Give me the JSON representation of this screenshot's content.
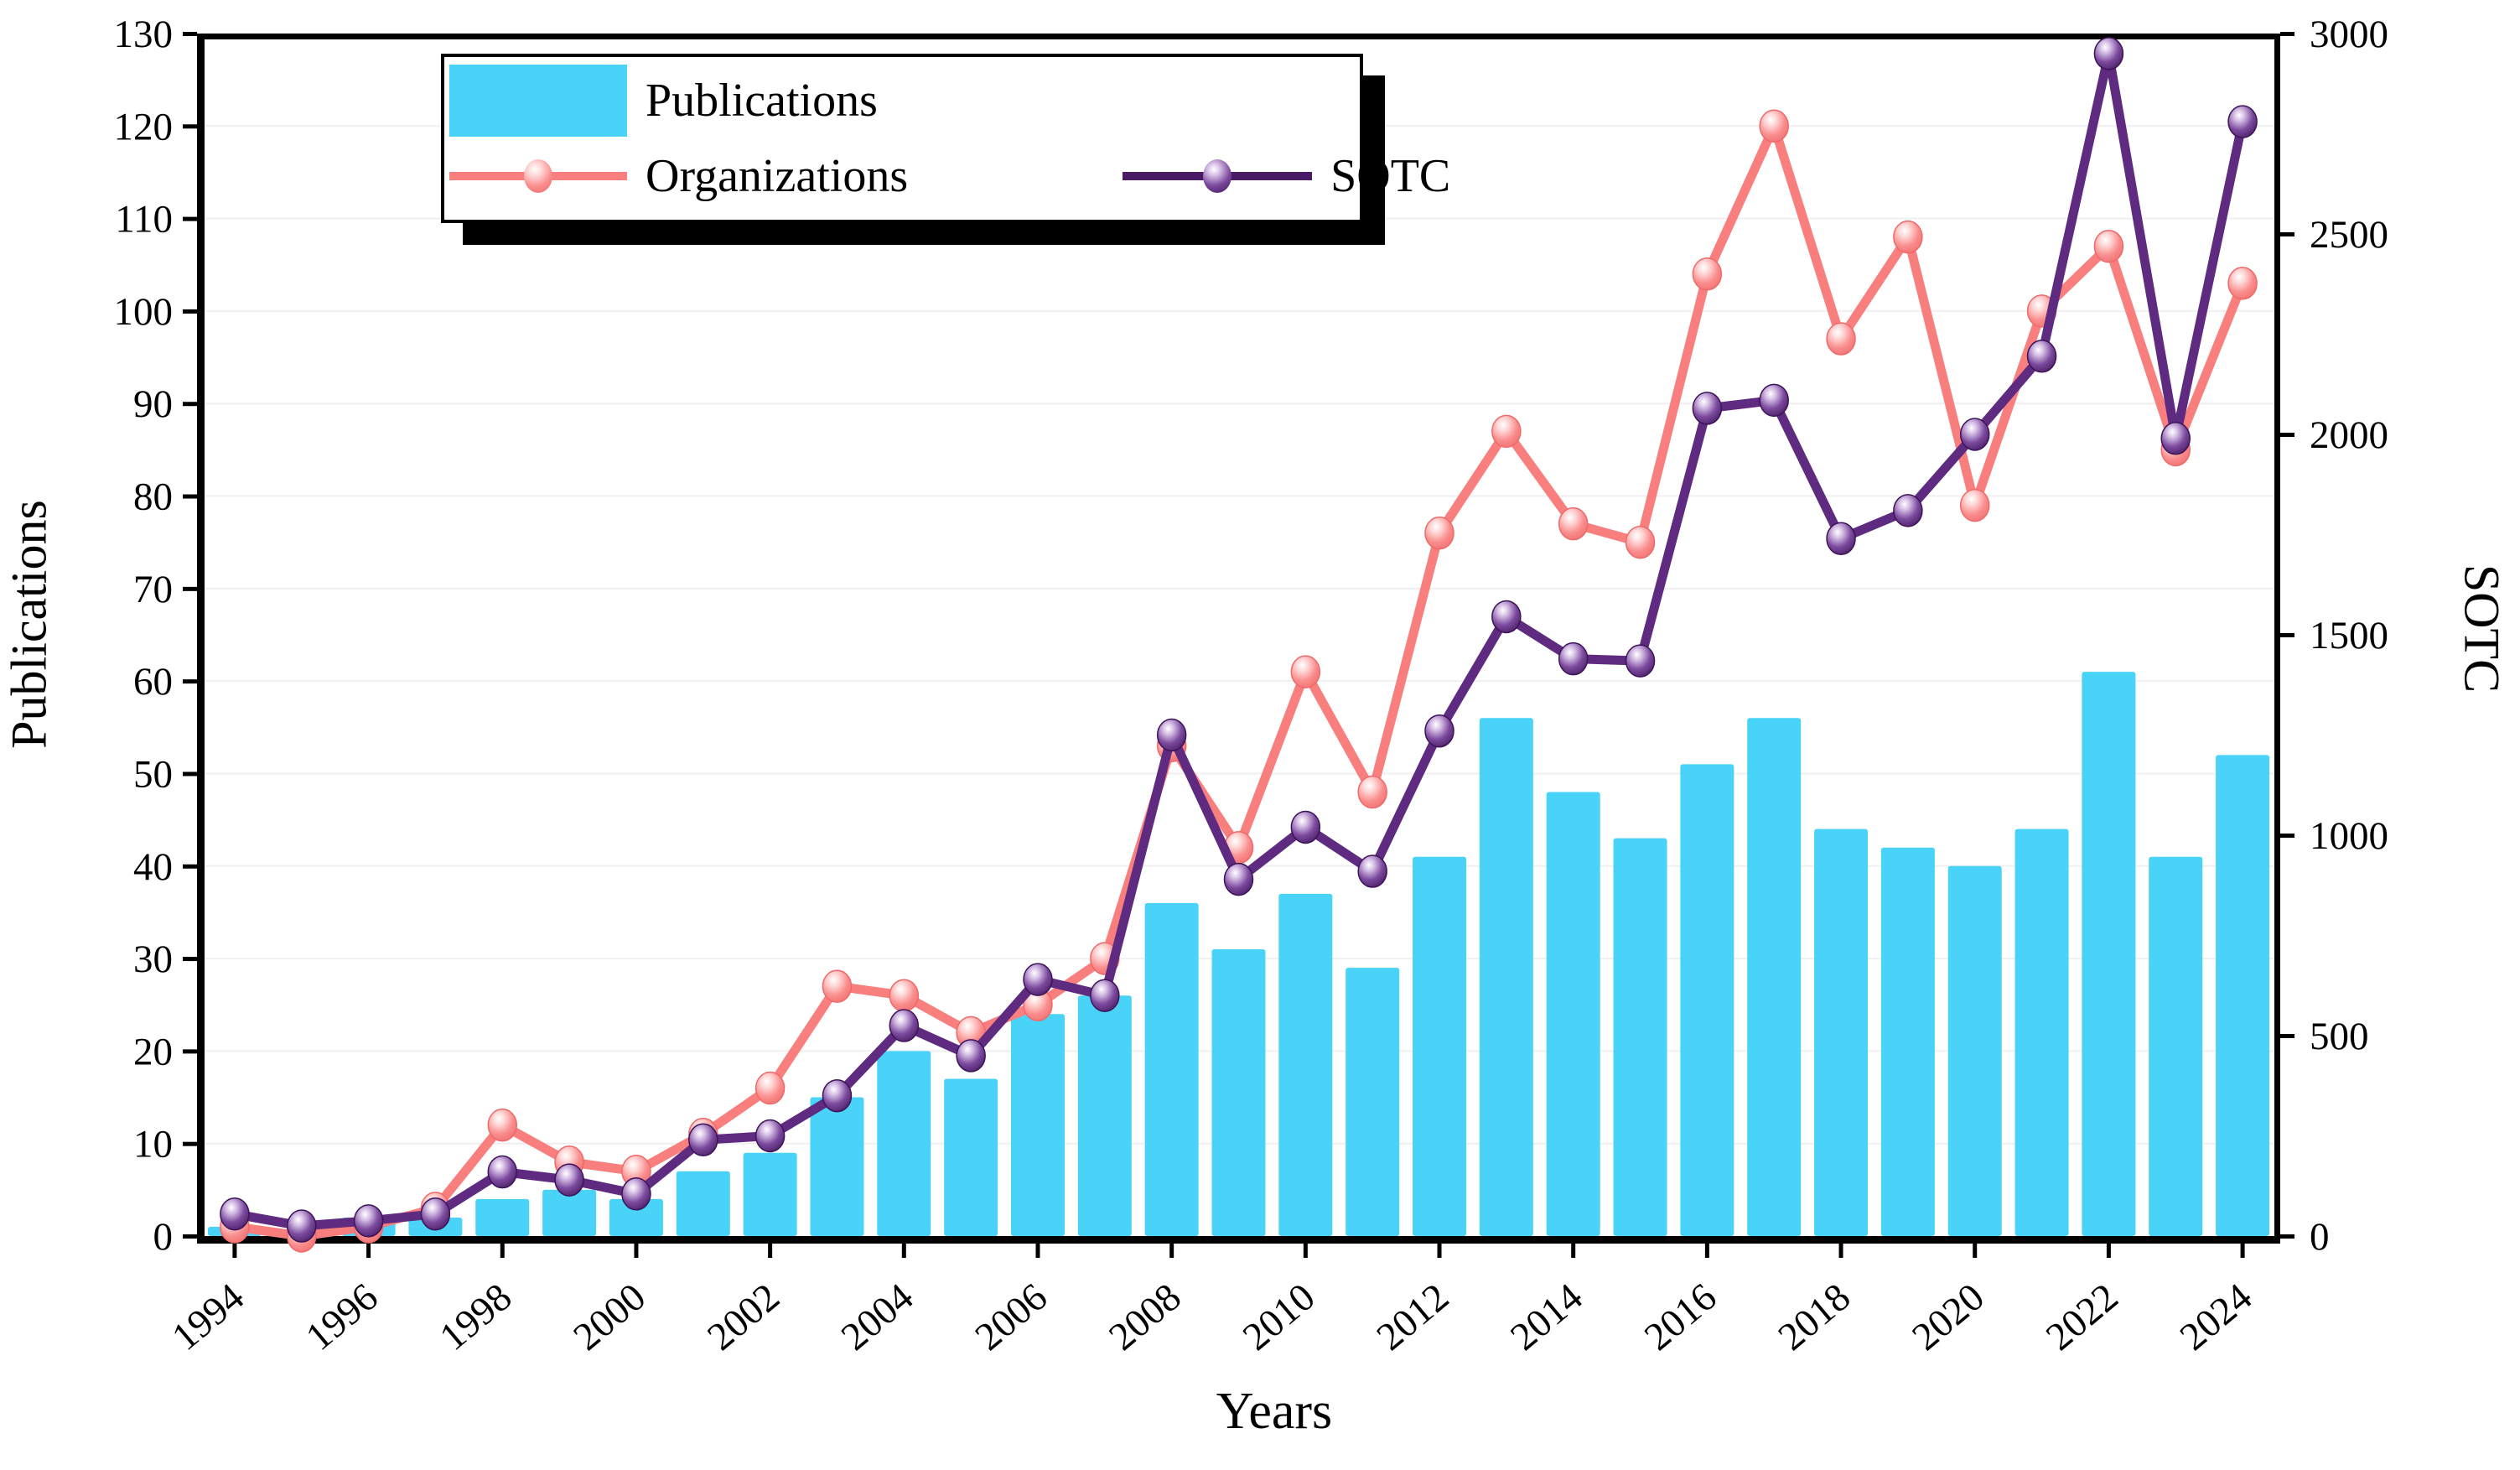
{
  "figure": {
    "x_axis_title": "Years",
    "left_axis_title": "Publications",
    "right_axis_title": "SOTC"
  },
  "legend": {
    "publications_label": "Publications",
    "organizations_label": "Organizations",
    "sotc_label": "SOTC"
  },
  "chart_data": {
    "type": "bar",
    "subtype": "combo bar + two lines (dual axis)",
    "categories": [
      1994,
      1995,
      1996,
      1997,
      1998,
      1999,
      2000,
      2001,
      2002,
      2003,
      2004,
      2005,
      2006,
      2007,
      2008,
      2009,
      2010,
      2011,
      2012,
      2013,
      2014,
      2015,
      2016,
      2017,
      2018,
      2019,
      2020,
      2021,
      2022,
      2023,
      2024
    ],
    "series": [
      {
        "name": "Publications",
        "type": "bar",
        "axis": "left",
        "color": "#49d3f8",
        "values": [
          1,
          0,
          2,
          2,
          4,
          5,
          4,
          7,
          9,
          15,
          20,
          17,
          24,
          26,
          36,
          31,
          37,
          29,
          41,
          56,
          48,
          43,
          51,
          56,
          44,
          42,
          40,
          44,
          61,
          41,
          52
        ]
      },
      {
        "name": "Organizations",
        "type": "line",
        "axis": "left",
        "color": "#f97f7f",
        "values": [
          1,
          0,
          1,
          3,
          12,
          8,
          7,
          11,
          16,
          27,
          26,
          22,
          25,
          30,
          53,
          42,
          61,
          48,
          76,
          87,
          77,
          75,
          104,
          120,
          97,
          108,
          79,
          100,
          107,
          85,
          103
        ]
      },
      {
        "name": "SOTC",
        "type": "line",
        "axis": "right",
        "color": "#5e2b80",
        "values": [
          55,
          25,
          38,
          55,
          160,
          140,
          105,
          240,
          250,
          350,
          525,
          450,
          640,
          600,
          1250,
          890,
          1020,
          910,
          1260,
          1545,
          1440,
          1435,
          2065,
          2085,
          1740,
          1810,
          2000,
          2195,
          2950,
          1990,
          2780
        ]
      }
    ],
    "xlabel": "Years",
    "ylabel_left": "Publications",
    "ylabel_right": "SOTC",
    "left_axis": {
      "min": 0,
      "max": 130,
      "step": 10,
      "tick_labels": [
        "0",
        "10",
        "20",
        "30",
        "40",
        "50",
        "60",
        "70",
        "80",
        "90",
        "100",
        "110",
        "120",
        "130"
      ]
    },
    "right_axis": {
      "min": 0,
      "max": 3000,
      "step": 500,
      "tick_labels": [
        "0",
        "500",
        "1000",
        "1500",
        "2000",
        "2500",
        "3000"
      ]
    },
    "x_tick_labels": [
      "1994",
      "1996",
      "1998",
      "2000",
      "2002",
      "2004",
      "2006",
      "2008",
      "2010",
      "2012",
      "2014",
      "2016",
      "2018",
      "2020",
      "2022",
      "2024"
    ],
    "grid": "faint horizontal gridlines every 10 left-units",
    "legend_position": "top-left inside plot, white box with black drop shadow"
  }
}
